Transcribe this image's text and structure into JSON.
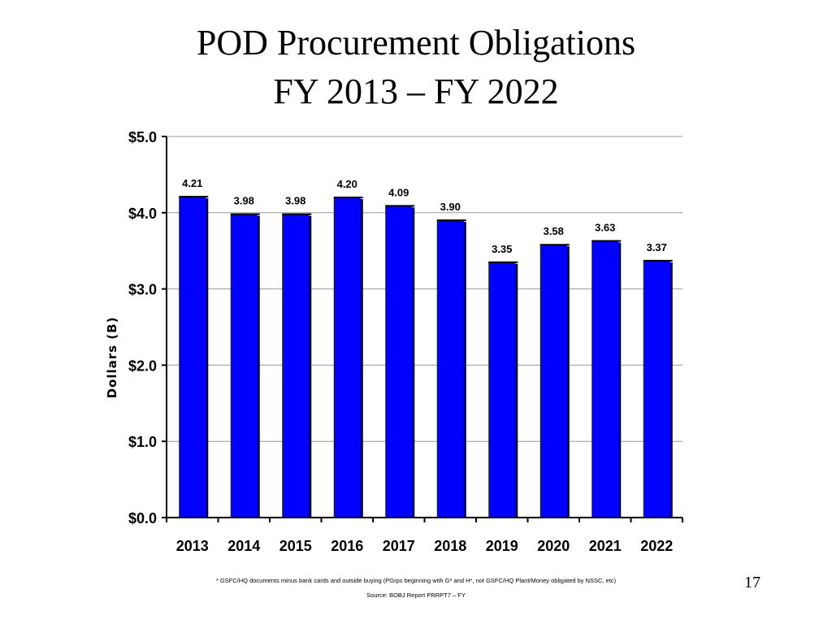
{
  "slide": {
    "title_line1": "POD Procurement Obligations",
    "title_line2": "FY 2013 – FY 2022",
    "footnote": "* GSFC/HQ documents minus bank cards and outside buying (PGrps beginning with G* and H*, not GSFC/HQ Plant/Money obligated by NSSC, etc)",
    "source": "Source: BOBJ Report PRRPT7 – FY",
    "page_number": "17"
  },
  "colors": {
    "bar": "#0000ff",
    "bar_shadow": "#000000",
    "grid": "#999999"
  },
  "chart_data": {
    "type": "bar",
    "title": "",
    "xlabel": "",
    "ylabel": "Dollars (B)",
    "categories": [
      "2013",
      "2014",
      "2015",
      "2016",
      "2017",
      "2018",
      "2019",
      "2020",
      "2021",
      "2022"
    ],
    "values": [
      4.21,
      3.98,
      3.98,
      4.2,
      4.09,
      3.9,
      3.35,
      3.58,
      3.63,
      3.37
    ],
    "value_labels": [
      "4.21",
      "3.98",
      "3.98",
      "4.20",
      "4.09",
      "3.90",
      "3.35",
      "3.58",
      "3.63",
      "3.37"
    ],
    "ylim": [
      0,
      5
    ],
    "yticks": [
      0,
      1,
      2,
      3,
      4,
      5
    ],
    "ytick_labels": [
      "$0.0",
      "$1.0",
      "$2.0",
      "$3.0",
      "$4.0",
      "$5.0"
    ],
    "grid": true,
    "legend": "none"
  }
}
